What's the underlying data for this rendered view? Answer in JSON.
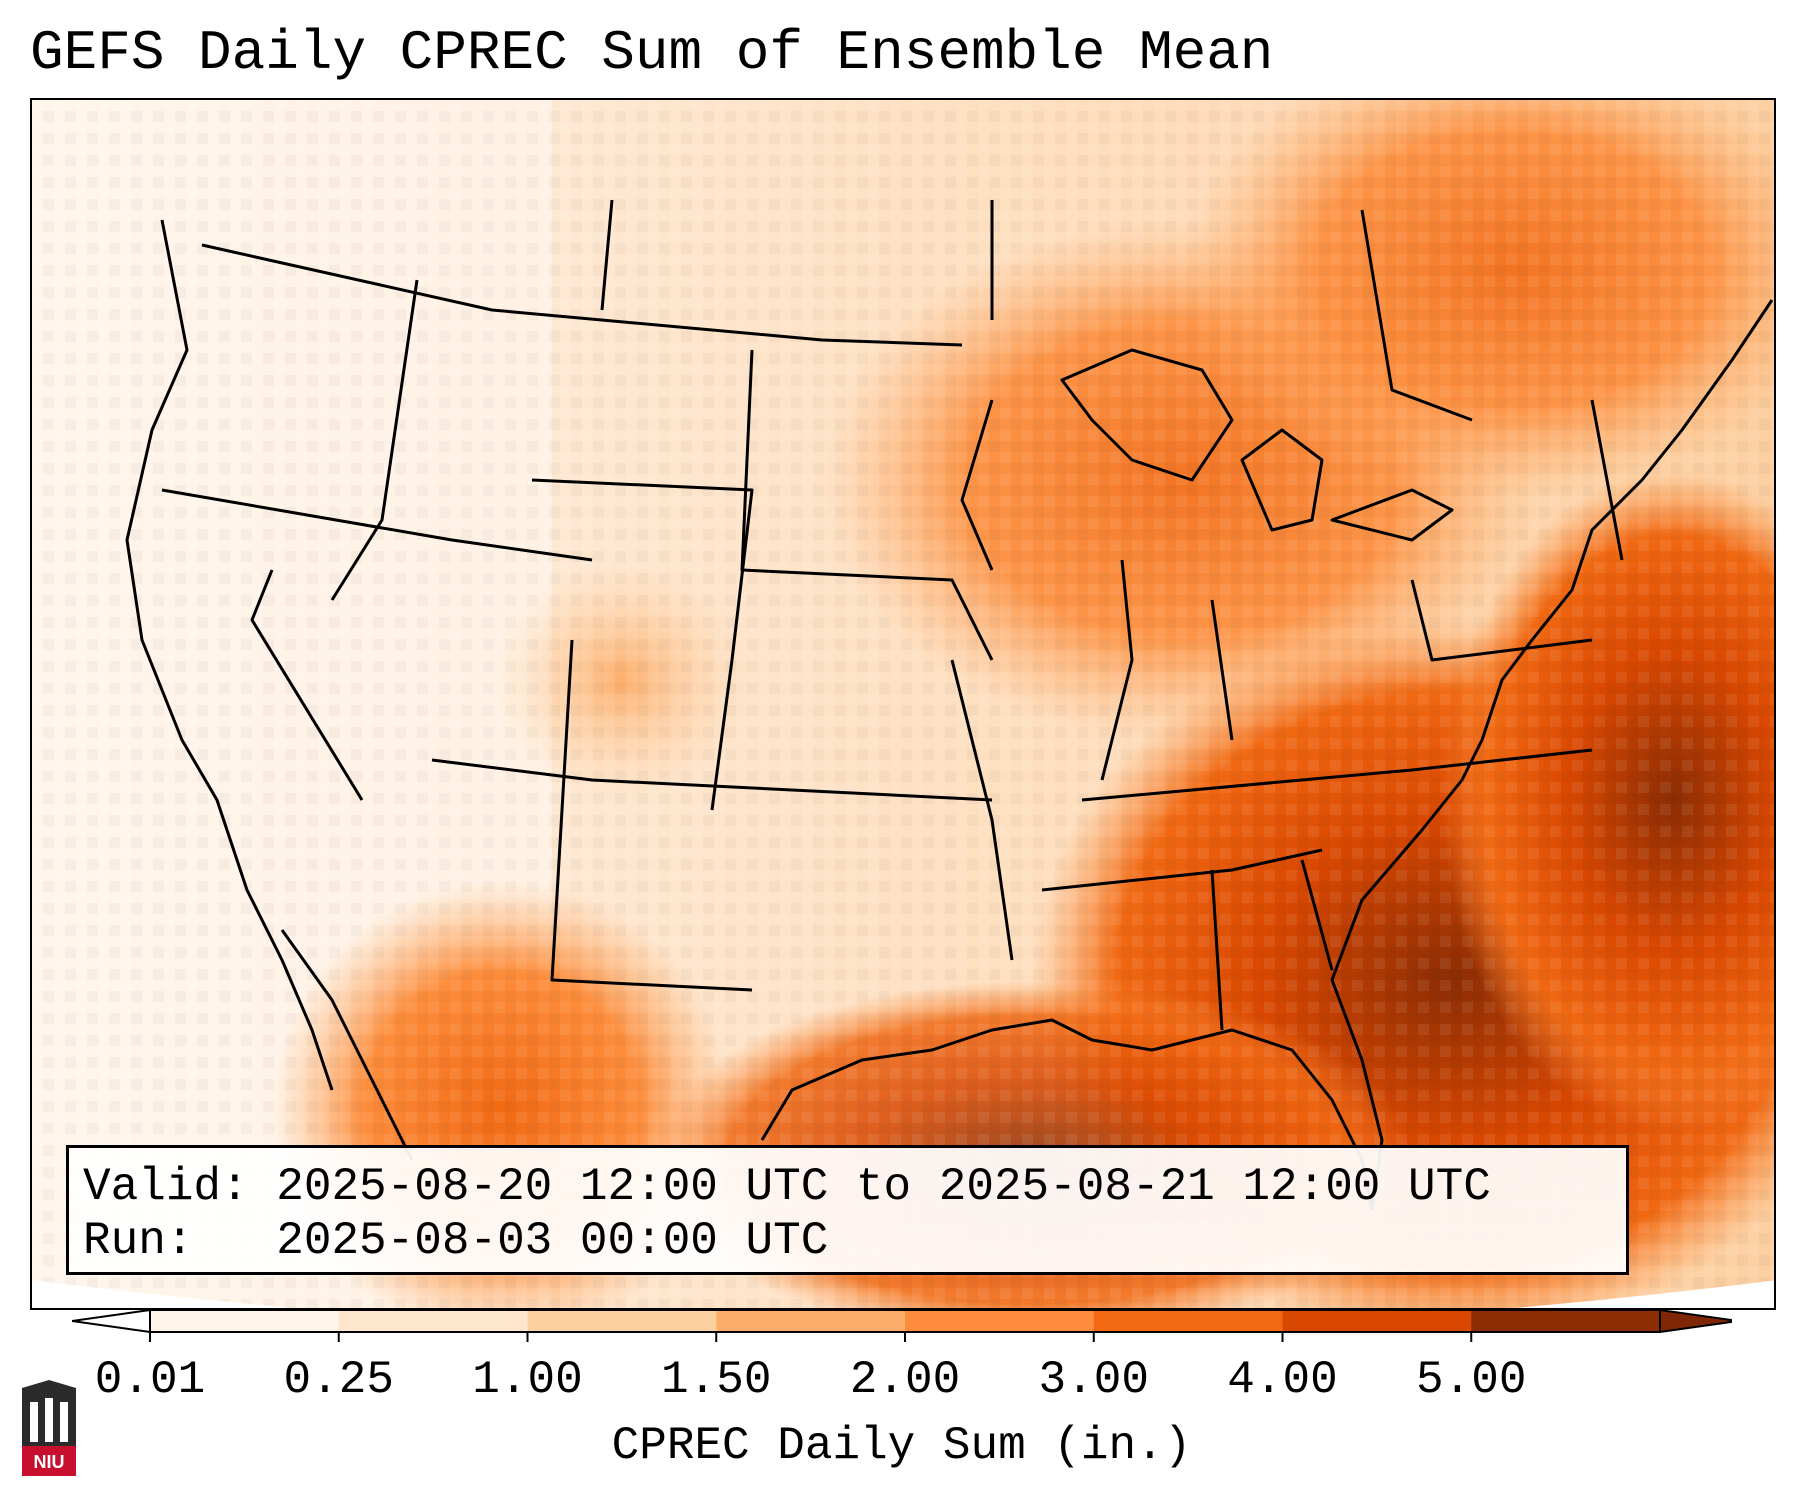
{
  "title": "GEFS Daily CPREC Sum of Ensemble Mean",
  "valid_text": "Valid: 2025-08-20 12:00 UTC to 2025-08-21 12:00 UTC",
  "run_text": "Run:   2025-08-03 00:00 UTC",
  "colorbar": {
    "label": "CPREC Daily Sum (in.)",
    "ticks": [
      "0.01",
      "0.25",
      "1.00",
      "1.50",
      "2.00",
      "3.00",
      "4.00",
      "5.00"
    ],
    "colors": [
      "#fff5eb",
      "#fee6ce",
      "#fdd0a2",
      "#fdae6b",
      "#fd8d3c",
      "#f16913",
      "#d94801",
      "#8c2d04"
    ],
    "under_color": "#ffffff",
    "over_color": "#7f2704"
  },
  "map": {
    "projection": "Lambert conformal, CONUS",
    "field": "Convective precipitation daily sum (in.)"
  },
  "logo": {
    "text": "NIU",
    "color": "#c8102e"
  }
}
